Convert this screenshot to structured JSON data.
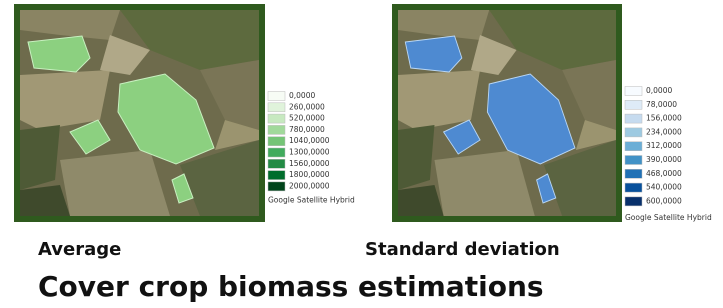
{
  "panels": [
    {
      "caption": "Average",
      "legend": {
        "labels": [
          "0,0000",
          "260,0000",
          "520,0000",
          "780,0000",
          "1040,0000",
          "1300,0000",
          "1560,0000",
          "1800,0000",
          "2000,0000"
        ],
        "colors": [
          "#f7fcf5",
          "#e0f3db",
          "#c7e9c0",
          "#a1d99b",
          "#74c476",
          "#41ab5d",
          "#238b45",
          "#006d2c",
          "#00441b"
        ],
        "source": "Google Satellite Hybrid"
      }
    },
    {
      "caption": "Standard deviation",
      "legend": {
        "labels": [
          "0,0000",
          "78,0000",
          "156,0000",
          "234,0000",
          "312,0000",
          "390,0000",
          "468,0000",
          "540,0000",
          "600,0000"
        ],
        "colors": [
          "#f7fbff",
          "#deebf7",
          "#c6dbef",
          "#9ecae1",
          "#6baed6",
          "#4292c6",
          "#2171b5",
          "#08519c",
          "#08306b"
        ],
        "source": "Google Satellite Hybrid"
      }
    }
  ],
  "title": "Cover crop biomass estimations"
}
